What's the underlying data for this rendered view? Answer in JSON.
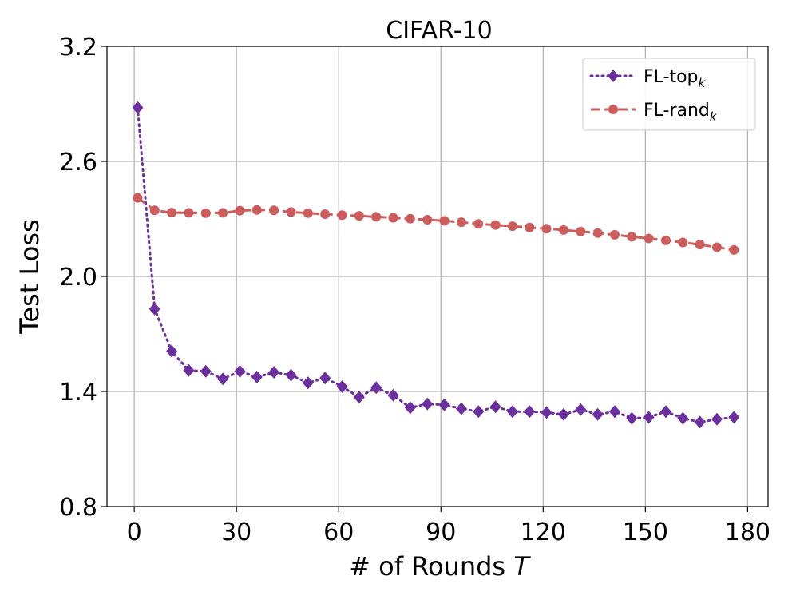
{
  "chart_data": {
    "type": "line",
    "title": "CIFAR-10",
    "xlabel": "# of Rounds",
    "xlabel_var": "T",
    "ylabel": "Test Loss",
    "xlim": [
      -8,
      186
    ],
    "ylim": [
      0.8,
      3.2
    ],
    "xticks": [
      0,
      30,
      60,
      90,
      120,
      150,
      180
    ],
    "yticks": [
      0.8,
      1.4,
      2.0,
      2.6,
      3.2
    ],
    "ytick_labels": [
      "0.8",
      "1.4",
      "2.0",
      "2.6",
      "3.2"
    ],
    "grid": true,
    "legend_position": "top-right",
    "series": [
      {
        "name": "FL-top",
        "subscript": "k",
        "color": "#6b2fa0",
        "marker": "diamond",
        "line_style": "dotted",
        "x": [
          1,
          6,
          11,
          16,
          21,
          26,
          31,
          36,
          41,
          46,
          51,
          56,
          61,
          66,
          71,
          76,
          81,
          86,
          91,
          96,
          101,
          106,
          111,
          116,
          121,
          126,
          131,
          136,
          141,
          146,
          151,
          156,
          161,
          166,
          171,
          176
        ],
        "y": [
          2.88,
          1.83,
          1.61,
          1.51,
          1.505,
          1.465,
          1.505,
          1.475,
          1.5,
          1.485,
          1.445,
          1.47,
          1.425,
          1.37,
          1.42,
          1.38,
          1.315,
          1.335,
          1.33,
          1.31,
          1.295,
          1.32,
          1.295,
          1.295,
          1.29,
          1.28,
          1.305,
          1.28,
          1.295,
          1.26,
          1.265,
          1.295,
          1.26,
          1.24,
          1.255,
          1.265
        ]
      },
      {
        "name": "FL-rand",
        "subscript": "k",
        "color": "#cd5c5c",
        "marker": "circle",
        "line_style": "dashed",
        "x": [
          1,
          6,
          11,
          16,
          21,
          26,
          31,
          36,
          41,
          46,
          51,
          56,
          61,
          66,
          71,
          76,
          81,
          86,
          91,
          96,
          101,
          106,
          111,
          116,
          121,
          126,
          131,
          136,
          141,
          146,
          151,
          156,
          161,
          166,
          171,
          176
        ],
        "y": [
          2.41,
          2.345,
          2.333,
          2.332,
          2.33,
          2.332,
          2.343,
          2.347,
          2.345,
          2.336,
          2.33,
          2.325,
          2.32,
          2.316,
          2.311,
          2.306,
          2.301,
          2.296,
          2.29,
          2.283,
          2.274,
          2.268,
          2.262,
          2.255,
          2.249,
          2.242,
          2.234,
          2.226,
          2.217,
          2.207,
          2.198,
          2.188,
          2.177,
          2.166,
          2.152,
          2.138
        ]
      }
    ]
  }
}
